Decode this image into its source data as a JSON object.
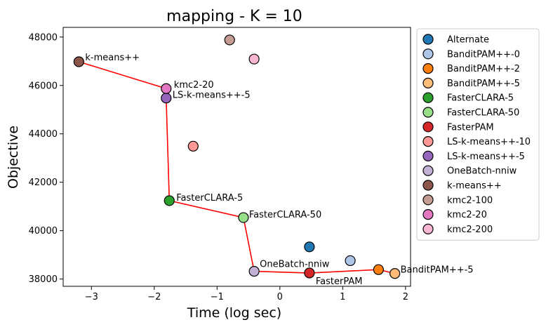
{
  "chart_data": {
    "type": "scatter",
    "title": "mapping - K = 10",
    "xlabel": "Time (log sec)",
    "ylabel": "Objective",
    "xlim": [
      -3.45,
      2.08
    ],
    "ylim": [
      37700,
      48400
    ],
    "xticks": [
      -3,
      -2,
      -1,
      0,
      1,
      2
    ],
    "yticks": [
      38000,
      40000,
      42000,
      44000,
      46000,
      48000
    ],
    "grid": false,
    "legend_position": "outside-right",
    "points": [
      {
        "name": "Alternate",
        "color": "#1f77b4",
        "x": 0.47,
        "y": 39330
      },
      {
        "name": "BanditPAM++-0",
        "color": "#aec7e8",
        "x": 1.12,
        "y": 38760
      },
      {
        "name": "BanditPAM++-2",
        "color": "#ff7f0e",
        "x": 1.57,
        "y": 38390
      },
      {
        "name": "BanditPAM++-5",
        "color": "#ffbb78",
        "x": 1.83,
        "y": 38230,
        "label": "BanditPAM++-5"
      },
      {
        "name": "FasterCLARA-5",
        "color": "#2ca02c",
        "x": -1.76,
        "y": 41240,
        "label": "FasterCLARA-5"
      },
      {
        "name": "FasterCLARA-50",
        "color": "#98df8a",
        "x": -0.58,
        "y": 40540,
        "label": "FasterCLARA-50"
      },
      {
        "name": "FasterPAM",
        "color": "#d62728",
        "x": 0.47,
        "y": 38250,
        "label": "FasterPAM"
      },
      {
        "name": "LS-k-means++-10",
        "color": "#ff9896",
        "x": -1.38,
        "y": 43490
      },
      {
        "name": "LS-k-means++-5",
        "color": "#9467bd",
        "x": -1.81,
        "y": 45480,
        "label": "LS-k-means++-5"
      },
      {
        "name": "OneBatch-nniw",
        "color": "#c5b0d5",
        "x": -0.41,
        "y": 38320,
        "label": "OneBatch-nniw"
      },
      {
        "name": "k-means++",
        "color": "#8c564b",
        "x": -3.2,
        "y": 46980,
        "label": "k-means++"
      },
      {
        "name": "kmc2-100",
        "color": "#c49c94",
        "x": -0.8,
        "y": 47880
      },
      {
        "name": "kmc2-20",
        "color": "#e377c2",
        "x": -1.81,
        "y": 45870,
        "label": "kmc2-20"
      },
      {
        "name": "kmc2-200",
        "color": "#f7b6d2",
        "x": -0.41,
        "y": 47090
      }
    ],
    "pareto_line": {
      "color": "#ff0000",
      "points": [
        [
          -3.2,
          46980
        ],
        [
          -1.81,
          45870
        ],
        [
          -1.81,
          45480
        ],
        [
          -1.76,
          41240
        ],
        [
          -0.58,
          40540
        ],
        [
          -0.41,
          38320
        ],
        [
          0.47,
          38250
        ],
        [
          1.57,
          38390
        ],
        [
          1.83,
          38230
        ]
      ]
    },
    "legend": [
      "Alternate",
      "BanditPAM++-0",
      "BanditPAM++-2",
      "BanditPAM++-5",
      "FasterCLARA-5",
      "FasterCLARA-50",
      "FasterPAM",
      "LS-k-means++-10",
      "LS-k-means++-5",
      "OneBatch-nniw",
      "k-means++",
      "kmc2-100",
      "kmc2-20",
      "kmc2-200"
    ]
  }
}
